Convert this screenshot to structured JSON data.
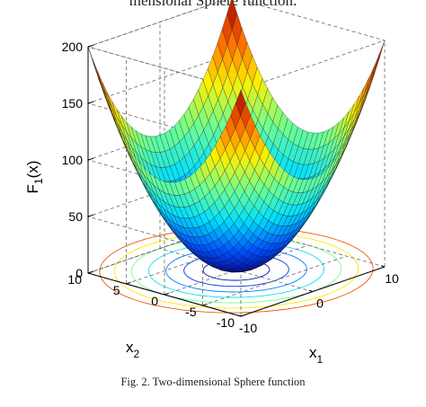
{
  "header_text": "mensional Sphere function.",
  "caption": "Fig. 2. Two-dimensional Sphere function",
  "chart_data": {
    "type": "surface",
    "function": "F1(x) = x1^2 + x2^2",
    "zlabel_main": "F",
    "zlabel_sub": "1",
    "zlabel_tail": "(x)",
    "xlabel_main": "x",
    "xlabel_sub": "1",
    "ylabel_main": "x",
    "ylabel_sub": "2",
    "xlim": [
      -10,
      10
    ],
    "ylim": [
      -10,
      10
    ],
    "zlim": [
      0,
      200
    ],
    "z_ticks": [
      "0",
      "50",
      "100",
      "150",
      "200"
    ],
    "x_ticks": [
      "-10",
      "0",
      "10"
    ],
    "y_ticks": [
      "10",
      "5",
      "0",
      "-5",
      "-10"
    ],
    "contour_levels": [
      10,
      25,
      45,
      70,
      100,
      135,
      170
    ],
    "colormap": [
      "#00008f",
      "#0050ff",
      "#00dfff",
      "#70ff8f",
      "#ffef00",
      "#ff6000",
      "#8f0000"
    ],
    "grid": true
  }
}
